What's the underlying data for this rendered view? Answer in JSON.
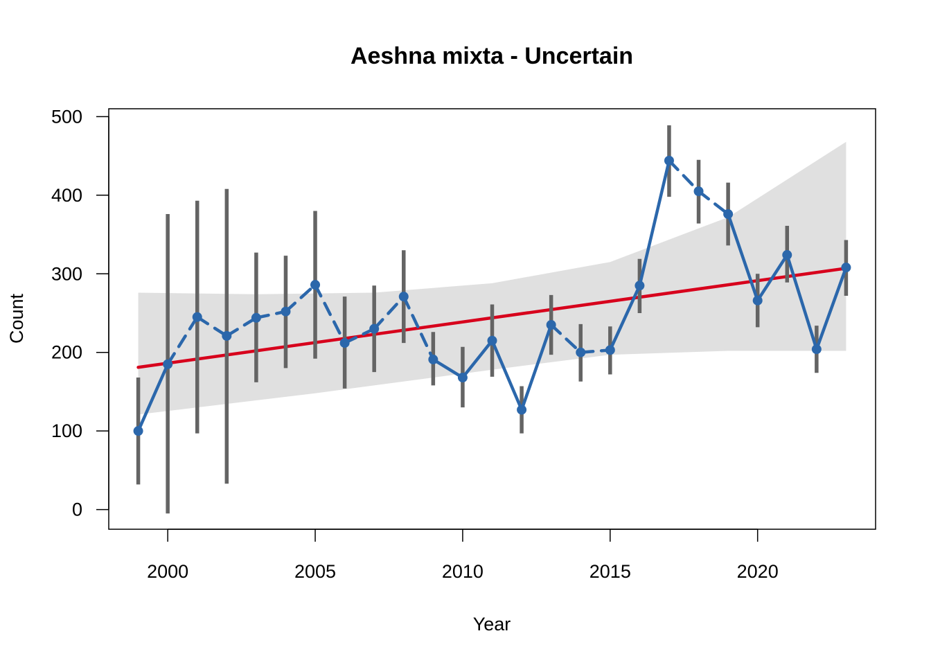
{
  "chart_data": {
    "type": "line",
    "title": "Aeshna mixta - Uncertain",
    "xlabel": "Year",
    "ylabel": "Count",
    "xlim": [
      1998,
      2024
    ],
    "ylim": [
      -25,
      510
    ],
    "x_ticks": [
      2000,
      2005,
      2010,
      2015,
      2020
    ],
    "y_ticks": [
      0,
      100,
      200,
      300,
      400,
      500
    ],
    "grid": false,
    "legend": "none",
    "series": [
      {
        "x": [
          1999,
          2000,
          2001,
          2002,
          2003,
          2004,
          2005,
          2006,
          2007,
          2008,
          2009,
          2010,
          2011,
          2012,
          2013,
          2014,
          2015,
          2016,
          2017,
          2018,
          2019,
          2020,
          2021,
          2022,
          2023
        ],
        "values": [
          100,
          185,
          245,
          221,
          244,
          252,
          286,
          212,
          230,
          271,
          191,
          168,
          215,
          127,
          235,
          200,
          203,
          285,
          444,
          405,
          376,
          266,
          324,
          204,
          308
        ],
        "lower": [
          32,
          -5,
          97,
          33,
          162,
          180,
          192,
          154,
          175,
          212,
          158,
          130,
          169,
          97,
          197,
          163,
          172,
          250,
          398,
          364,
          336,
          232,
          289,
          174,
          272
        ],
        "upper": [
          168,
          376,
          393,
          408,
          327,
          323,
          380,
          271,
          285,
          330,
          226,
          207,
          261,
          157,
          273,
          236,
          233,
          319,
          489,
          445,
          416,
          300,
          361,
          234,
          343
        ],
        "line_style_after": [
          "solid",
          "dashed",
          "dashed",
          "dashed",
          "dashed",
          "dashed",
          "dashed",
          "dashed",
          "dashed",
          "dashed",
          "solid",
          "solid",
          "solid",
          "solid",
          "dashed",
          "dashed",
          "solid",
          "solid",
          "dashed",
          "dashed",
          "solid",
          "solid",
          "solid",
          "solid"
        ]
      }
    ],
    "trend": {
      "x": [
        1999,
        2023
      ],
      "y": [
        181,
        307
      ],
      "ci_lower_at": [
        [
          1999,
          121
        ],
        [
          2005,
          148
        ],
        [
          2011,
          178
        ],
        [
          2015,
          197
        ],
        [
          2019,
          202
        ],
        [
          2023,
          202
        ]
      ],
      "ci_upper_at": [
        [
          1999,
          276
        ],
        [
          2003,
          274
        ],
        [
          2007,
          276
        ],
        [
          2011,
          288
        ],
        [
          2015,
          315
        ],
        [
          2019,
          372
        ],
        [
          2023,
          468
        ]
      ]
    },
    "colors": {
      "series": "#2b67ab",
      "error_bars": "#646464",
      "trend": "#d7001c",
      "ci_band": "#e0e0e0"
    }
  }
}
